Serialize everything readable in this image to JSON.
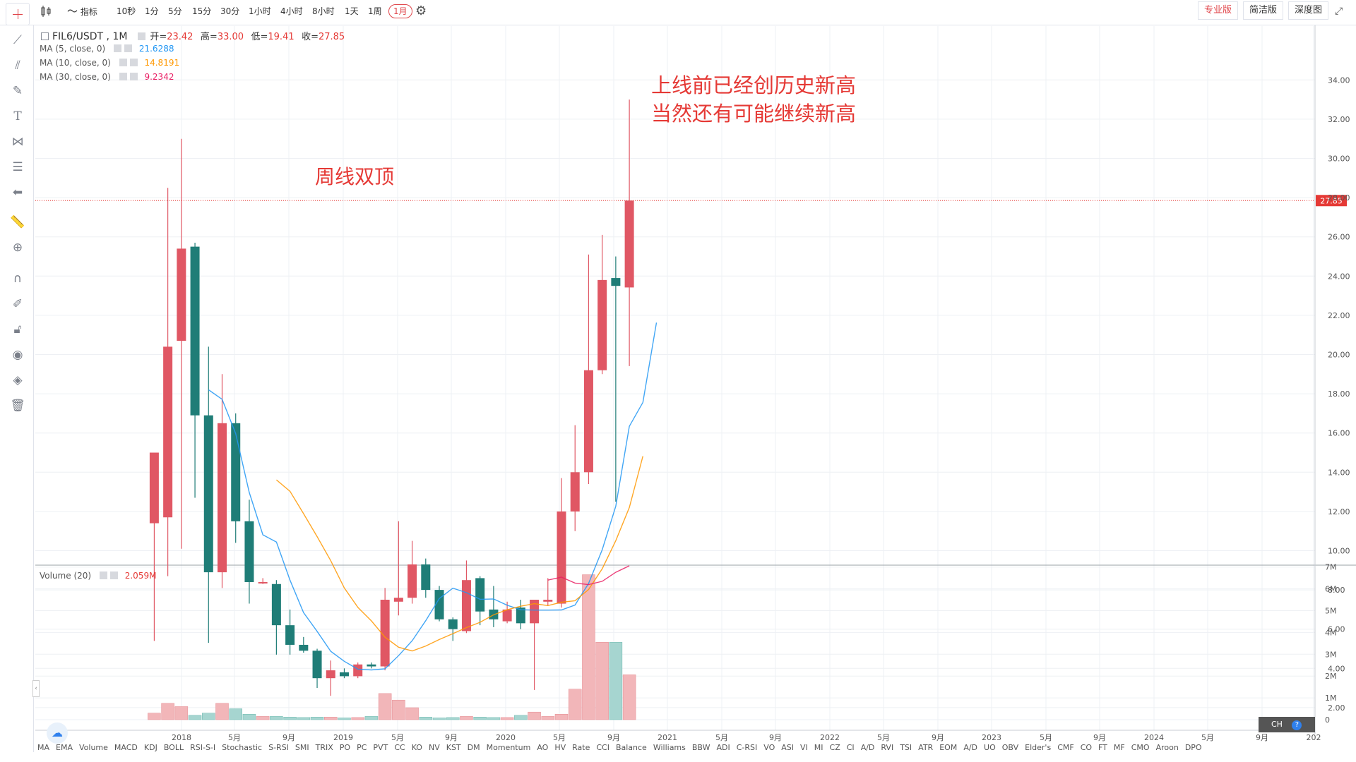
{
  "toolbar": {
    "chart_type_icon": "candlestick-icon",
    "indicator_icon": "indicator-wave-icon",
    "indicator_label": "指标",
    "intervals": [
      "10秒",
      "1分",
      "5分",
      "15分",
      "30分",
      "1小时",
      "4小时",
      "8小时",
      "1天",
      "1周",
      "1月"
    ],
    "active_interval": "1月",
    "settings_icon": "gear-icon",
    "views": [
      "专业版",
      "简洁版",
      "深度图"
    ],
    "active_view": "专业版",
    "fullscreen_icon": "fullscreen-icon"
  },
  "left_tools": [
    "crosshair-icon",
    "trend-line-icon",
    "multi-line-icon",
    "brush-icon",
    "text-icon",
    "pattern-icon",
    "fib-icon",
    "arrow-left-icon",
    "ruler-icon",
    "zoom-icon",
    "magnet-icon",
    "lock-pen-icon",
    "lock-icon",
    "eye-icon",
    "layers-icon",
    "trash-icon"
  ],
  "legend": {
    "symbol": "FIL6/USDT , 1M",
    "open_label": "开=",
    "open": "23.42",
    "high_label": "高=",
    "high": "33.00",
    "low_label": "低=",
    "low": "19.41",
    "close_label": "收=",
    "close": "27.85",
    "ma": [
      {
        "label": "MA (5, close, 0)",
        "value": "21.6288",
        "color": "#2196f3"
      },
      {
        "label": "MA (10, close, 0)",
        "value": "14.8191",
        "color": "#ff9800"
      },
      {
        "label": "MA (30, close, 0)",
        "value": "9.2342",
        "color": "#e91e63"
      }
    ],
    "volume_label": "Volume (20)",
    "volume_value": "2.059M"
  },
  "annotations": {
    "note1": "上线前已经创历史新高",
    "note2": "当然还有可能继续新高",
    "note3": "周线双顶"
  },
  "indicators": [
    "MA",
    "EMA",
    "Volume",
    "MACD",
    "KDJ",
    "BOLL",
    "RSI-S-I",
    "Stochastic",
    "S-RSI",
    "SMI",
    "TRIX",
    "PO",
    "PC",
    "PVT",
    "CC",
    "KO",
    "NV",
    "KST",
    "DM",
    "Momentum",
    "AO",
    "HV",
    "Rate",
    "CCI",
    "Balance",
    "Williams",
    "BBW",
    "ADI",
    "C-RSI",
    "VO",
    "ASI",
    "VI",
    "MI",
    "CZ",
    "CI",
    "A/D",
    "RVI",
    "TSI",
    "ATR",
    "EOM",
    "A/D",
    "UO",
    "OBV",
    "Elder's",
    "CMF",
    "CO",
    "FT",
    "MF",
    "CMO",
    "Aroon",
    "DPO"
  ],
  "status": {
    "lang": "CH",
    "help_icon": "help-icon"
  },
  "colors": {
    "up": "#26a69a",
    "down": "#ef5350",
    "up_fill": "#1f7d77",
    "down_fill": "#e05764",
    "annotation": "#e53935",
    "price_line": "#e53935"
  },
  "chart_data": {
    "type": "candlestick",
    "price_axis": {
      "ticks": [
        2,
        4,
        6,
        8,
        10,
        12,
        14,
        16,
        18,
        20,
        22,
        24,
        26,
        28,
        30,
        32,
        34
      ],
      "tick_labels": [
        "2.00",
        "4.00",
        "6.00",
        "8.00",
        "10.00",
        "12.00",
        "14.00",
        "16.00",
        "18.00",
        "20.00",
        "22.00",
        "24.00",
        "26.00",
        "28.00",
        "30.00",
        "32.00",
        "34.00"
      ],
      "ylim": [
        1,
        34.5
      ]
    },
    "current_price": 27.85,
    "current_price_label": "27.85",
    "volume_axis": {
      "ticks": [
        0,
        1,
        2,
        3,
        4,
        5,
        6,
        7
      ],
      "tick_labels": [
        "0",
        "1M",
        "2M",
        "3M",
        "4M",
        "5M",
        "6M",
        "7M"
      ],
      "ylim": [
        -0.1,
        7
      ]
    },
    "time_axis": {
      "labels": [
        "2018",
        "5月",
        "9月",
        "2019",
        "5月",
        "9月",
        "2020",
        "5月",
        "9月",
        "2021",
        "5月",
        "9月",
        "2022",
        "5月",
        "9月",
        "2023",
        "5月",
        "9月",
        "2024",
        "5月",
        "9月",
        "202"
      ]
    },
    "candles": [
      {
        "o": 11.4,
        "h": 15.0,
        "l": 5.4,
        "c": 15.0,
        "v": 0.3
      },
      {
        "o": 11.7,
        "h": 28.5,
        "l": 8.7,
        "c": 20.4,
        "v": 0.75
      },
      {
        "o": 20.7,
        "h": 31.0,
        "l": 10.1,
        "c": 25.4,
        "v": 0.6
      },
      {
        "o": 25.5,
        "h": 25.7,
        "l": 12.7,
        "c": 16.9,
        "v": 0.2
      },
      {
        "o": 16.9,
        "h": 20.4,
        "l": 5.3,
        "c": 8.9,
        "v": 0.3
      },
      {
        "o": 8.9,
        "h": 19.0,
        "l": 8.1,
        "c": 16.5,
        "v": 0.75
      },
      {
        "o": 16.5,
        "h": 17.0,
        "l": 10.4,
        "c": 11.5,
        "v": 0.5
      },
      {
        "o": 11.5,
        "h": 12.6,
        "l": 7.3,
        "c": 8.4,
        "v": 0.25
      },
      {
        "o": 8.4,
        "h": 8.6,
        "l": 8.3,
        "c": 8.4,
        "v": 0.15
      },
      {
        "o": 8.3,
        "h": 8.5,
        "l": 4.7,
        "c": 6.2,
        "v": 0.15
      },
      {
        "o": 6.2,
        "h": 7.0,
        "l": 4.7,
        "c": 5.2,
        "v": 0.12
      },
      {
        "o": 5.2,
        "h": 5.6,
        "l": 4.8,
        "c": 4.9,
        "v": 0.1
      },
      {
        "o": 4.9,
        "h": 5.0,
        "l": 3.0,
        "c": 3.5,
        "v": 0.12
      },
      {
        "o": 3.5,
        "h": 4.4,
        "l": 2.6,
        "c": 3.9,
        "v": 0.12
      },
      {
        "o": 3.8,
        "h": 4.0,
        "l": 3.5,
        "c": 3.6,
        "v": 0.08
      },
      {
        "o": 3.6,
        "h": 4.3,
        "l": 3.5,
        "c": 4.2,
        "v": 0.1
      },
      {
        "o": 4.2,
        "h": 4.3,
        "l": 4.0,
        "c": 4.1,
        "v": 0.15
      },
      {
        "o": 4.1,
        "h": 8.1,
        "l": 3.9,
        "c": 7.5,
        "v": 1.2
      },
      {
        "o": 7.4,
        "h": 11.5,
        "l": 6.7,
        "c": 7.6,
        "v": 0.9
      },
      {
        "o": 7.6,
        "h": 10.5,
        "l": 7.3,
        "c": 9.3,
        "v": 0.55
      },
      {
        "o": 9.3,
        "h": 9.6,
        "l": 7.6,
        "c": 8.0,
        "v": 0.12
      },
      {
        "o": 8.0,
        "h": 8.2,
        "l": 6.4,
        "c": 6.5,
        "v": 0.08
      },
      {
        "o": 6.5,
        "h": 6.6,
        "l": 5.4,
        "c": 6.0,
        "v": 0.1
      },
      {
        "o": 5.9,
        "h": 9.5,
        "l": 5.8,
        "c": 8.5,
        "v": 0.15
      },
      {
        "o": 8.6,
        "h": 8.7,
        "l": 6.2,
        "c": 6.9,
        "v": 0.12
      },
      {
        "o": 7.0,
        "h": 8.2,
        "l": 6.1,
        "c": 6.5,
        "v": 0.1
      },
      {
        "o": 6.4,
        "h": 7.4,
        "l": 6.3,
        "c": 7.0,
        "v": 0.1
      },
      {
        "o": 7.1,
        "h": 7.5,
        "l": 6.0,
        "c": 6.3,
        "v": 0.2
      },
      {
        "o": 6.3,
        "h": 7.5,
        "l": 2.9,
        "c": 7.5,
        "v": 0.35
      },
      {
        "o": 7.4,
        "h": 8.6,
        "l": 7.2,
        "c": 7.5,
        "v": 0.15
      },
      {
        "o": 7.3,
        "h": 13.7,
        "l": 7.1,
        "c": 12.0,
        "v": 0.25
      },
      {
        "o": 12.0,
        "h": 16.4,
        "l": 11.0,
        "c": 14.0,
        "v": 1.4
      },
      {
        "o": 14.0,
        "h": 25.1,
        "l": 13.4,
        "c": 19.2,
        "v": 6.65
      },
      {
        "o": 19.2,
        "h": 26.1,
        "l": 19.0,
        "c": 23.8,
        "v": 3.55
      },
      {
        "o": 23.9,
        "h": 25.0,
        "l": 12.5,
        "c": 23.5,
        "v": 3.55
      },
      {
        "o": 23.42,
        "h": 33.0,
        "l": 19.41,
        "c": 27.85,
        "v": 2.059
      }
    ],
    "ma": [
      {
        "name": "MA (5, close, 0)",
        "color": "#2196f3",
        "start": 4,
        "values": [
          18.2,
          17.72,
          15.97,
          12.97,
          10.81,
          10.44,
          8.5,
          6.84,
          5.89,
          4.87,
          4.36,
          3.96,
          3.92,
          3.98,
          4.65,
          5.41,
          6.43,
          7.56,
          8.09,
          7.86,
          7.52,
          7.54,
          7.22,
          6.99,
          6.97,
          6.97,
          6.98,
          7.23,
          8.33,
          10.05,
          12.27,
          16.34,
          17.56,
          21.63
        ]
      },
      {
        "name": "MA (10, close, 0)",
        "color": "#ff9800",
        "start": 9,
        "values": [
          13.61,
          13.03,
          11.89,
          10.72,
          9.49,
          8.1,
          7.11,
          6.42,
          5.59,
          5.08,
          4.89,
          5.14,
          5.47,
          5.77,
          6.08,
          6.35,
          6.73,
          6.99,
          7.17,
          7.3,
          7.2,
          7.37,
          7.45,
          8.02,
          9.08,
          10.51,
          12.2,
          14.82
        ]
      },
      {
        "name": "MA (30, close, 0)",
        "color": "#e91e63",
        "start": 29,
        "values": [
          8.5,
          8.65,
          8.35,
          8.27,
          8.44,
          8.9,
          9.23
        ]
      }
    ]
  }
}
